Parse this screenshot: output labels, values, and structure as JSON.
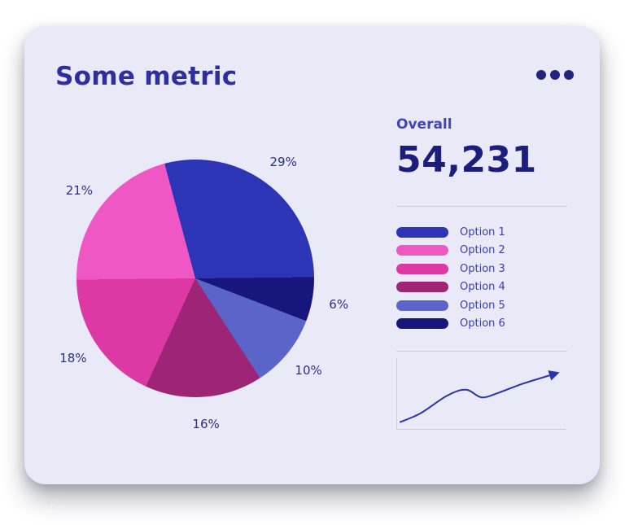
{
  "card": {
    "title": "Some metric",
    "menu_icon": "ellipsis-menu-icon"
  },
  "overall": {
    "label": "Overall",
    "value": "54,231"
  },
  "legend": {
    "items": [
      {
        "label": "Option 1",
        "color": "#2b35b5"
      },
      {
        "label": "Option 2",
        "color": "#ef57c4"
      },
      {
        "label": "Option 3",
        "color": "#dc39a5"
      },
      {
        "label": "Option 4",
        "color": "#9e2476"
      },
      {
        "label": "Option 5",
        "color": "#5b64c8"
      },
      {
        "label": "Option 6",
        "color": "#16167d"
      }
    ]
  },
  "chart_data": [
    {
      "type": "pie",
      "title": "Some metric",
      "start_angle": -15,
      "legend_position": "right",
      "slices": [
        {
          "label": "Option 1",
          "percent": 29,
          "display": "29%",
          "color": "#2b35b5"
        },
        {
          "label": "Option 6",
          "percent": 6,
          "display": "6%",
          "color": "#16167d"
        },
        {
          "label": "Option 5",
          "percent": 10,
          "display": "10%",
          "color": "#5b64c8"
        },
        {
          "label": "Option 4",
          "percent": 16,
          "display": "16%",
          "color": "#9e2476"
        },
        {
          "label": "Option 3",
          "percent": 18,
          "display": "18%",
          "color": "#dc39a5"
        },
        {
          "label": "Option 2",
          "percent": 21,
          "display": "21%",
          "color": "#ef57c4"
        }
      ]
    },
    {
      "type": "line",
      "name": "trend-sparkline",
      "x": [
        0,
        0.13,
        0.3,
        0.42,
        0.52,
        0.63,
        0.78,
        1
      ],
      "y": [
        0.05,
        0.2,
        0.5,
        0.6,
        0.47,
        0.55,
        0.7,
        0.88
      ],
      "color": "#2b35a8",
      "axes": "left-bottom",
      "grid": false
    }
  ]
}
